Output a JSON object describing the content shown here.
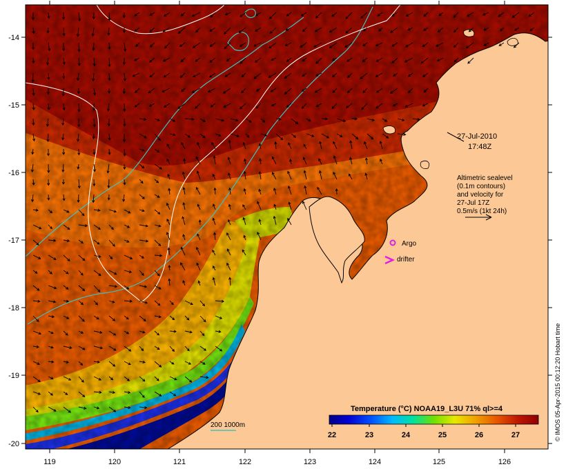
{
  "map": {
    "lon_ticks": [
      "119",
      "120",
      "121",
      "122",
      "123",
      "124",
      "125",
      "126"
    ],
    "lat_ticks": [
      "-14",
      "-15",
      "-16",
      "-17",
      "-18",
      "-19",
      "-20"
    ],
    "timestamp_date": "27-Jul-2010",
    "timestamp_time": "17:48Z",
    "altimetry_lines": [
      "Altimetric sealevel",
      "(0.1m contours)",
      "and velocity for",
      "27-Jul 17Z",
      "0.5m/s (1kt 24h)"
    ],
    "legend_argo": "Argo",
    "legend_drifter": "drifter",
    "bathy_label": "200  1000m",
    "colorbar_title": "Temperature (°C) NOAA19_L3U 71% ql>=4",
    "colorbar_ticks": [
      "22",
      "23",
      "24",
      "25",
      "26",
      "27"
    ],
    "credit": "© IMOS 05-Apr-2015 00:12:20 Hobart time",
    "colors": {
      "land": "#fcc895",
      "warm": "#9e0b00",
      "argo": "#e020e0",
      "bathy": "#40c0c0"
    }
  }
}
